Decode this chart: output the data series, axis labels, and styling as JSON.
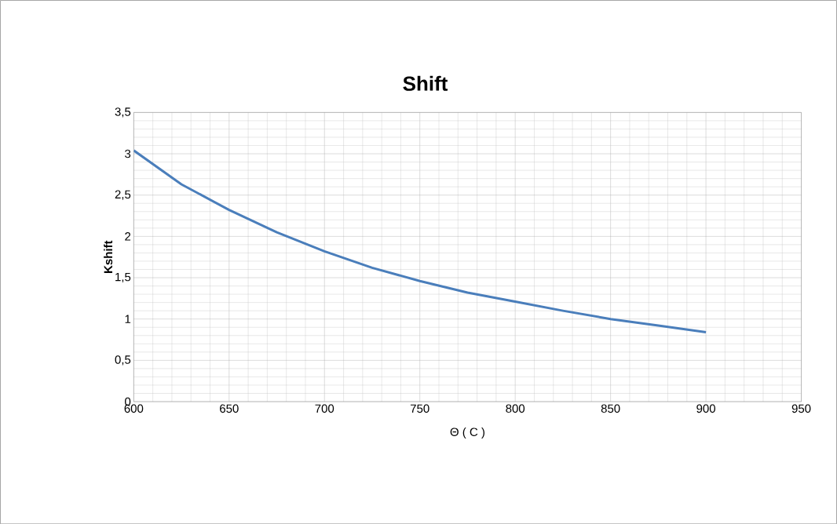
{
  "chart_data": {
    "type": "line",
    "title": "Shift",
    "xlabel": "Θ ( C )",
    "ylabel": "Kshift",
    "x": [
      600,
      625,
      650,
      675,
      700,
      725,
      750,
      775,
      800,
      825,
      850,
      875,
      900
    ],
    "series": [
      {
        "color": "#4a7ebb",
        "values": [
          3.04,
          2.63,
          2.32,
          2.05,
          1.82,
          1.62,
          1.46,
          1.32,
          1.21,
          1.1,
          1.0,
          0.92,
          0.84
        ]
      }
    ],
    "xlim": [
      600,
      950
    ],
    "xticks": [
      600,
      650,
      700,
      750,
      800,
      850,
      900,
      950
    ],
    "ylim": [
      0,
      3.5
    ],
    "yticks": [
      0,
      {
        "value": 0.5,
        "label": "0,5"
      },
      1,
      {
        "value": 1.5,
        "label": "1,5"
      },
      2,
      {
        "value": 2.5,
        "label": "2,5"
      },
      3,
      {
        "value": 3.5,
        "label": "3,5"
      }
    ],
    "grid": true,
    "marker": "none",
    "line_style": "solid"
  }
}
